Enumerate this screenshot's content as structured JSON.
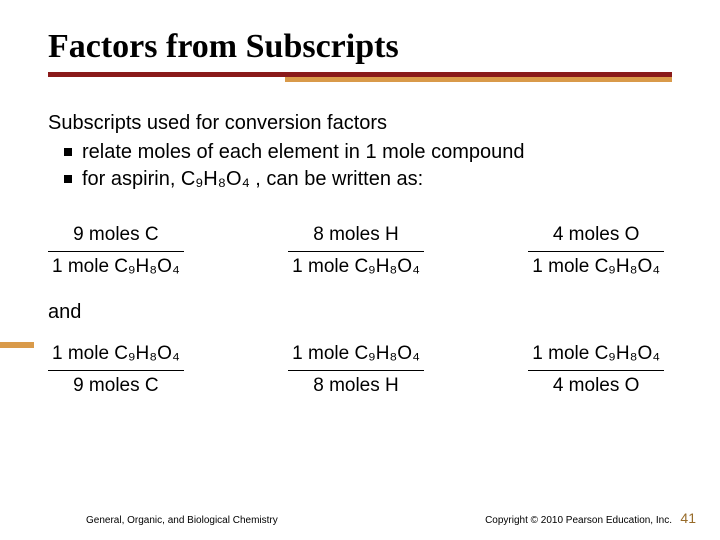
{
  "colors": {
    "rule_top": "#8a1a1a",
    "rule_bottom": "#d99a4a",
    "page_number": "#976b29",
    "text": "#000000",
    "background": "#ffffff"
  },
  "title": "Factors from Subscripts",
  "lead": "Subscripts used for conversion factors",
  "bullets": [
    "relate moles of each element in 1 mole compound",
    "for aspirin, C₉H₈O₄ , can be written as:"
  ],
  "row1": [
    {
      "top": "9 moles C",
      "bottom": "1 mole C₉H₈O₄"
    },
    {
      "top": "8 moles H",
      "bottom": "1 mole C₉H₈O₄"
    },
    {
      "top": "4 moles O",
      "bottom": "1 mole C₉H₈O₄"
    }
  ],
  "and_word": "and",
  "row2": [
    {
      "top": "1 mole C₉H₈O₄",
      "bottom": "9 moles C"
    },
    {
      "top": "1 mole C₉H₈O₄",
      "bottom": "8 moles H"
    },
    {
      "top": "1 mole C₉H₈O₄",
      "bottom": "4 moles O"
    }
  ],
  "footer": {
    "left": "General, Organic, and Biological Chemistry",
    "right": "Copyright © 2010 Pearson Education, Inc.",
    "page": "41"
  },
  "typography": {
    "title_font": "Times New Roman",
    "title_size_pt": 26,
    "body_font": "Arial",
    "body_size_pt": 15,
    "footer_size_pt": 8
  }
}
